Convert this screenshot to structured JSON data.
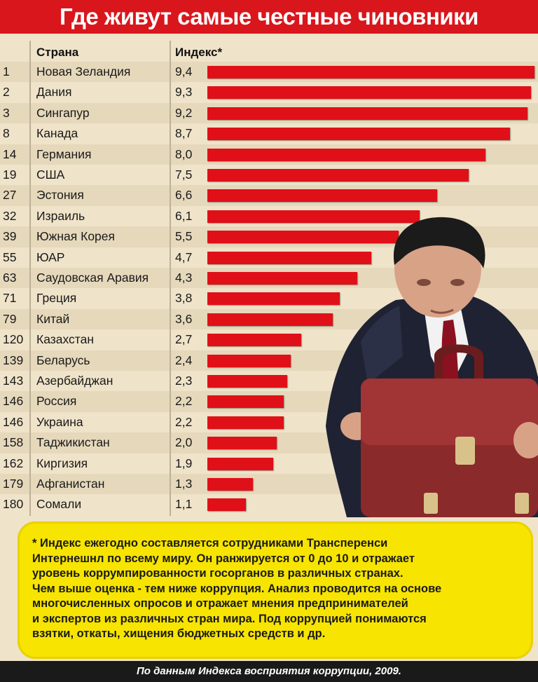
{
  "title": "Где живут самые честные чиновники",
  "headers": {
    "country": "Страна",
    "index": "Индекс*"
  },
  "colors": {
    "accent": "#d9161c",
    "bar": "#e01018",
    "note": "#f7e400",
    "background": "#efe3c9"
  },
  "chart_data": {
    "type": "bar",
    "orientation": "horizontal",
    "title": "Где живут самые честные чиновники",
    "xlim": [
      0,
      9.4
    ],
    "grid": false,
    "ranks": [
      "1",
      "2",
      "3",
      "8",
      "14",
      "19",
      "27",
      "32",
      "39",
      "55",
      "63",
      "71",
      "79",
      "120",
      "139",
      "143",
      "146",
      "146",
      "158",
      "162",
      "179",
      "180"
    ],
    "categories": [
      "Новая Зеландия",
      "Дания",
      "Сингапур",
      "Канада",
      "Германия",
      "США",
      "Эстония",
      "Израиль",
      "Южная Корея",
      "ЮАР",
      "Саудовская Аравия",
      "Греция",
      "Китай",
      "Казахстан",
      "Беларусь",
      "Азербайджан",
      "Россия",
      "Украина",
      "Таджикистан",
      "Киргизия",
      "Афганистан",
      "Сомали"
    ],
    "labels": [
      "9,4",
      "9,3",
      "9,2",
      "8,7",
      "8,0",
      "7,5",
      "6,6",
      "6,1",
      "5,5",
      "4,7",
      "4,3",
      "3,8",
      "3,6",
      "2,7",
      "2,4",
      "2,3",
      "2,2",
      "2,2",
      "2,0",
      "1,9",
      "1,3",
      "1,1"
    ],
    "values": [
      9.4,
      9.3,
      9.2,
      8.7,
      8.0,
      7.5,
      6.6,
      6.1,
      5.5,
      4.7,
      4.3,
      3.8,
      3.6,
      2.7,
      2.4,
      2.3,
      2.2,
      2.2,
      2.0,
      1.9,
      1.3,
      1.1
    ]
  },
  "footnote": "* Индекс ежегодно составляется сотрудниками Трансперенси\nИнтернешнл по всему миру. Он ранжируется от 0 до 10 и отражает\nуровень коррумпированности госорганов в различных странах.\nЧем выше оценка - тем ниже коррупция. Анализ проводится на основе\nмногочисленных опросов и отражает мнения предпринимателей\nи экспертов из различных стран мира. Под коррупцией понимаются\nвзятки, откаты, хищения бюджетных средств и др.",
  "source": "По данным Индекса восприятия коррупции, 2009."
}
